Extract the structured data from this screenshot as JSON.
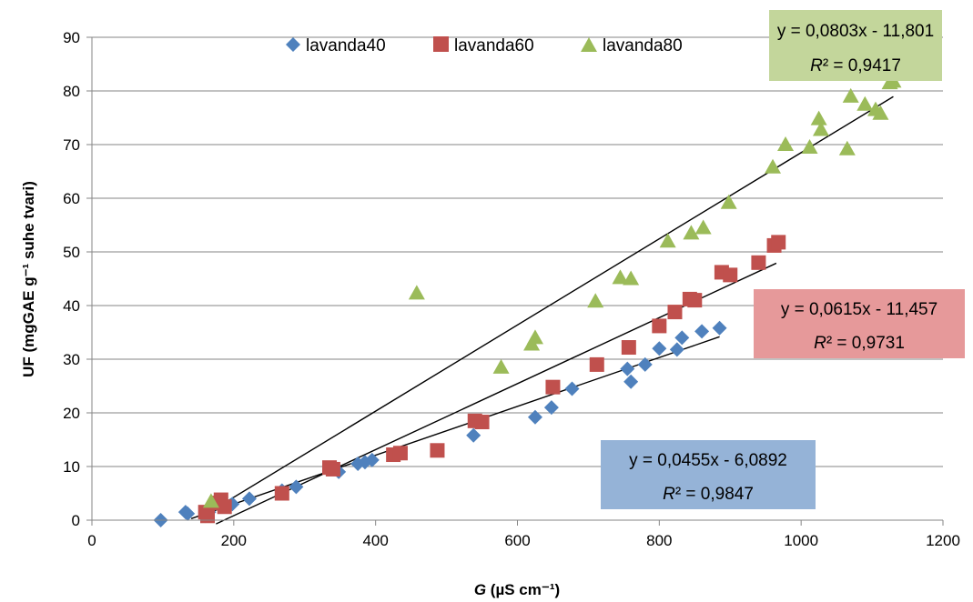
{
  "chart_data": {
    "type": "scatter",
    "xlabel_italic": "G",
    "xlabel_rest": " (µS cm⁻¹)",
    "ylabel": "UF (mgGAE g⁻¹ suhe tvari)",
    "xlim": [
      0,
      1200
    ],
    "ylim": [
      0,
      90
    ],
    "xticks": [
      0,
      200,
      400,
      600,
      800,
      1000,
      1200
    ],
    "yticks": [
      0,
      10,
      20,
      30,
      40,
      50,
      60,
      70,
      80,
      90
    ],
    "grid": "horizontal",
    "legend_position": "top",
    "series": [
      {
        "name": "lavanda40",
        "color": "#4F81BD",
        "marker": "diamond",
        "points": [
          [
            97,
            0
          ],
          [
            132,
            1.5
          ],
          [
            135,
            1.2
          ],
          [
            160,
            0.8
          ],
          [
            165,
            1.5
          ],
          [
            198,
            3.0
          ],
          [
            222,
            4.0
          ],
          [
            268,
            5.5
          ],
          [
            288,
            6.2
          ],
          [
            348,
            9.0
          ],
          [
            375,
            10.5
          ],
          [
            385,
            10.8
          ],
          [
            395,
            11.2
          ],
          [
            538,
            15.8
          ],
          [
            625,
            19.2
          ],
          [
            648,
            21.0
          ],
          [
            677,
            24.5
          ],
          [
            755,
            28.2
          ],
          [
            760,
            25.8
          ],
          [
            780,
            29.0
          ],
          [
            800,
            32.0
          ],
          [
            825,
            31.8
          ],
          [
            832,
            34.0
          ],
          [
            860,
            35.2
          ],
          [
            885,
            35.8
          ]
        ],
        "trendline": {
          "slope": 0.0455,
          "intercept": -6.0892,
          "x_range": [
            140,
            885
          ]
        },
        "equation": "y = 0,0455x - 6,0892",
        "r2_label": "R",
        "r2_value": "² = 0,9847",
        "box_color": "#95B3D7"
      },
      {
        "name": "lavanda60",
        "color": "#C0504D",
        "marker": "square",
        "points": [
          [
            160,
            1.5
          ],
          [
            163,
            0.8
          ],
          [
            178,
            3.2
          ],
          [
            182,
            3.8
          ],
          [
            187,
            2.5
          ],
          [
            268,
            5.0
          ],
          [
            335,
            9.8
          ],
          [
            340,
            9.5
          ],
          [
            425,
            12.2
          ],
          [
            435,
            12.5
          ],
          [
            487,
            13.0
          ],
          [
            540,
            18.5
          ],
          [
            550,
            18.3
          ],
          [
            650,
            24.8
          ],
          [
            712,
            29.0
          ],
          [
            757,
            32.2
          ],
          [
            800,
            36.2
          ],
          [
            822,
            38.8
          ],
          [
            843,
            41.2
          ],
          [
            850,
            41.0
          ],
          [
            888,
            46.2
          ],
          [
            900,
            45.7
          ],
          [
            940,
            48.0
          ],
          [
            962,
            51.2
          ],
          [
            968,
            51.8
          ]
        ],
        "trendline": {
          "slope": 0.0615,
          "intercept": -11.457,
          "x_range": [
            175,
            965
          ]
        },
        "equation": "y = 0,0615x - 11,457",
        "r2_label": "R",
        "r2_value": "² = 0,9731",
        "box_color": "#E6999A"
      },
      {
        "name": "lavanda80",
        "color": "#9BBB59",
        "marker": "triangle",
        "points": [
          [
            168,
            3.5
          ],
          [
            458,
            42.3
          ],
          [
            577,
            28.5
          ],
          [
            620,
            32.8
          ],
          [
            625,
            34.0
          ],
          [
            710,
            40.8
          ],
          [
            745,
            45.2
          ],
          [
            760,
            45.0
          ],
          [
            812,
            52.0
          ],
          [
            845,
            53.5
          ],
          [
            862,
            54.5
          ],
          [
            898,
            59.2
          ],
          [
            960,
            65.8
          ],
          [
            978,
            70.0
          ],
          [
            1012,
            69.5
          ],
          [
            1025,
            74.8
          ],
          [
            1028,
            72.8
          ],
          [
            1065,
            69.2
          ],
          [
            1070,
            79.0
          ],
          [
            1090,
            77.5
          ],
          [
            1105,
            76.5
          ],
          [
            1112,
            75.8
          ],
          [
            1125,
            81.5
          ],
          [
            1130,
            81.8
          ]
        ],
        "trendline": {
          "slope": 0.0803,
          "intercept": -11.801,
          "x_range": [
            160,
            1130
          ]
        },
        "equation": "y = 0,0803x - 11,801",
        "r2_label": "R",
        "r2_value": "² = 0,9417",
        "box_color": "#C3D69B"
      }
    ]
  }
}
